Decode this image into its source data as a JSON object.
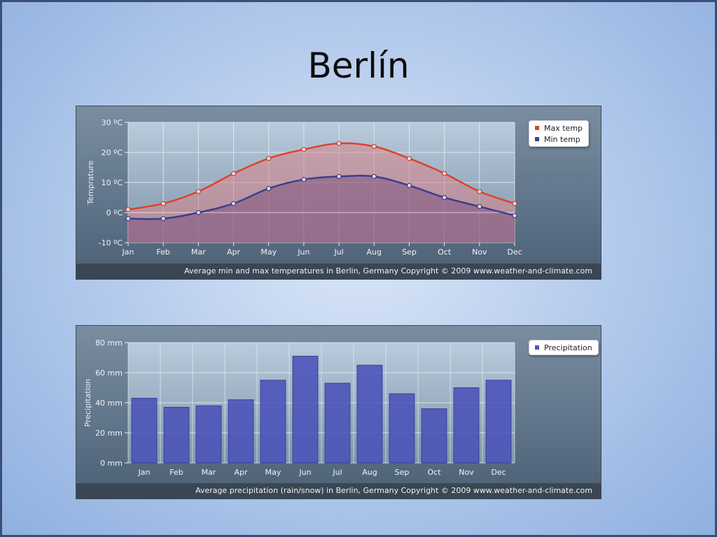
{
  "slide": {
    "title": "Berlín"
  },
  "chart_data": [
    {
      "type": "line",
      "x": [
        "Jan",
        "Feb",
        "Mar",
        "Apr",
        "May",
        "Jun",
        "Jul",
        "Aug",
        "Sep",
        "Oct",
        "Nov",
        "Dec"
      ],
      "ylabel": "Temprature",
      "ylim": [
        -10,
        30
      ],
      "yticks": [
        -10,
        0,
        10,
        20,
        30
      ],
      "ytick_labels": [
        "-10 ºC",
        "0 ºC",
        "10 ºC",
        "20 ºC",
        "30 ºC"
      ],
      "grid": true,
      "legend_position": "top-right",
      "series": [
        {
          "name": "Max temp",
          "color": "#e0412c",
          "values": [
            1,
            3,
            7,
            13,
            18,
            21,
            23,
            22,
            18,
            13,
            7,
            3
          ]
        },
        {
          "name": "Min temp",
          "color": "#3d3d8f",
          "values": [
            -2,
            -2,
            0,
            3,
            8,
            11,
            12,
            12,
            9,
            5,
            2,
            -1
          ]
        }
      ],
      "caption": "Average min and max temperatures in Berlin, Germany   Copyright © 2009 www.weather-and-climate.com"
    },
    {
      "type": "bar",
      "categories": [
        "Jan",
        "Feb",
        "Mar",
        "Apr",
        "May",
        "Jun",
        "Jul",
        "Aug",
        "Sep",
        "Oct",
        "Nov",
        "Dec"
      ],
      "ylabel": "Precipitation",
      "ylim": [
        0,
        80
      ],
      "yticks": [
        0,
        20,
        40,
        60,
        80
      ],
      "ytick_labels": [
        "0 mm",
        "20 mm",
        "40 mm",
        "60 mm",
        "80 mm"
      ],
      "grid": true,
      "legend_position": "top-right",
      "series": [
        {
          "name": "Precipitation",
          "color": "#4a52b8",
          "values": [
            43,
            37,
            38,
            42,
            55,
            71,
            53,
            65,
            46,
            36,
            50,
            55
          ]
        }
      ],
      "caption": "Average precipitation (rain/snow) in Berlin, Germany   Copyright © 2009 www.weather-and-climate.com"
    }
  ]
}
